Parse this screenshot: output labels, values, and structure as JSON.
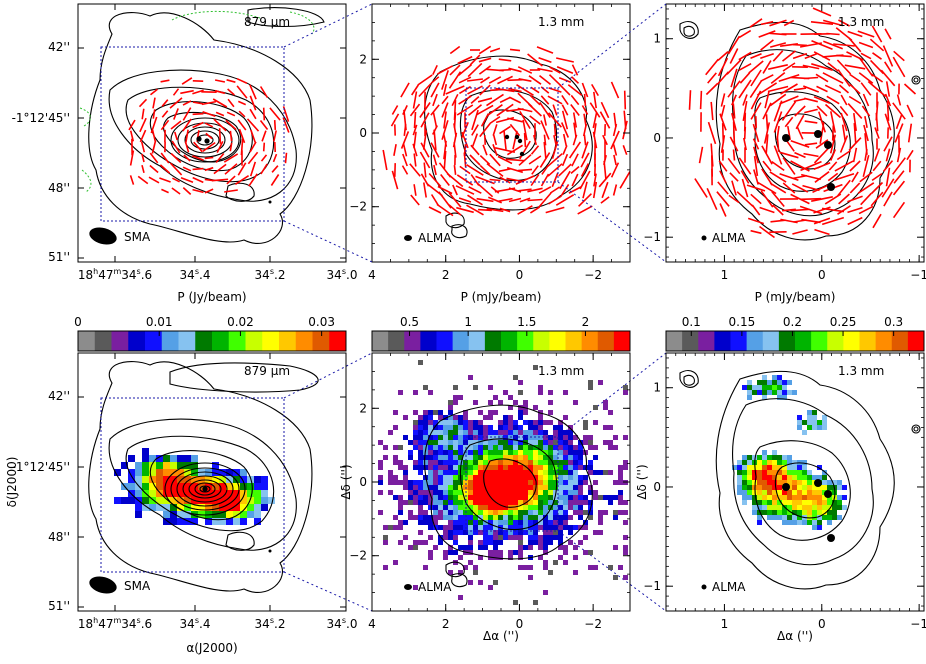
{
  "chart_data": [
    {
      "type": "scatter",
      "panel": "top-left",
      "telescope": "SMA",
      "wavelength_label": "879 μm",
      "xlabel": "P (Jy/beam)",
      "ylabel": "",
      "xticks": [
        {
          "pre": "18",
          "h": "h",
          "mid": "47",
          "m": "m",
          "sec": "34",
          "s": "s",
          "frac": ".6"
        },
        {
          "pre": "",
          "h": "",
          "mid": "",
          "m": "",
          "sec": "34",
          "s": "s",
          "frac": ".4"
        },
        {
          "pre": "",
          "h": "",
          "mid": "",
          "m": "",
          "sec": "34",
          "s": "s",
          "frac": ".2"
        },
        {
          "pre": "",
          "h": "",
          "mid": "",
          "m": "",
          "sec": "34",
          "s": "s",
          "frac": ".0"
        }
      ],
      "yticks": [
        "42''",
        "-1°12'45''",
        "48''",
        "51''"
      ],
      "content": "Stokes I contours with red polarization segments"
    },
    {
      "type": "scatter",
      "panel": "top-middle",
      "telescope": "ALMA",
      "wavelength_label": "1.3 mm",
      "xlabel": "P (mJy/beam)",
      "xlim": [
        4,
        -3
      ],
      "ylim": [
        -3.5,
        3.5
      ],
      "xticks": [
        "4",
        "2",
        "0",
        "−2"
      ],
      "yticks": [
        "2",
        "0",
        "−2"
      ]
    },
    {
      "type": "scatter",
      "panel": "top-right",
      "telescope": "ALMA",
      "wavelength_label": "1.3 mm",
      "xlabel": "P (mJy/beam)",
      "xlim": [
        1.6,
        -1.05
      ],
      "ylim": [
        -1.25,
        1.35
      ],
      "xticks": [
        "1",
        "0",
        "−1"
      ],
      "yticks": [
        "1",
        "0",
        "−1"
      ]
    },
    {
      "type": "heatmap",
      "panel": "bottom-left",
      "telescope": "SMA",
      "wavelength_label": "879 μm",
      "xlabel": "α(J2000)",
      "ylabel": "δ(J2000)",
      "colorbar_ticks": [
        "0",
        "0.01",
        "0.02",
        "0.03"
      ],
      "colorbar_range": [
        0,
        0.033
      ],
      "xticks": [
        {
          "pre": "18",
          "h": "h",
          "mid": "47",
          "m": "m",
          "sec": "34",
          "s": "s",
          "frac": ".6"
        },
        {
          "pre": "",
          "h": "",
          "mid": "",
          "m": "",
          "sec": "34",
          "s": "s",
          "frac": ".4"
        },
        {
          "pre": "",
          "h": "",
          "mid": "",
          "m": "",
          "sec": "34",
          "s": "s",
          "frac": ".2"
        },
        {
          "pre": "",
          "h": "",
          "mid": "",
          "m": "",
          "sec": "34",
          "s": "s",
          "frac": ".0"
        }
      ],
      "yticks": [
        "42''",
        "-1°12'45''",
        "48''",
        "51''"
      ]
    },
    {
      "type": "heatmap",
      "panel": "bottom-middle",
      "telescope": "ALMA",
      "wavelength_label": "1.3 mm",
      "xlabel": "Δα ('')",
      "ylabel": "Δδ ('')",
      "xlim": [
        4,
        -3
      ],
      "ylim": [
        -3.5,
        3.5
      ],
      "colorbar_ticks": [
        "0.5",
        "1",
        "1.5",
        "2"
      ],
      "colorbar_tick_values": [
        0.5,
        1,
        1.5,
        2
      ],
      "colorbar_range": [
        0.18,
        2.38
      ],
      "xticks": [
        "4",
        "2",
        "0",
        "−2"
      ],
      "yticks": [
        "2",
        "0",
        "−2"
      ]
    },
    {
      "type": "heatmap",
      "panel": "bottom-right",
      "telescope": "ALMA",
      "wavelength_label": "1.3 mm",
      "xlabel": "Δα ('')",
      "ylabel": "Δδ ('')",
      "xlim": [
        1.6,
        -1.05
      ],
      "ylim": [
        -1.25,
        1.35
      ],
      "colorbar_ticks": [
        "0.1",
        "0.15",
        "0.2",
        "0.25",
        "0.3"
      ],
      "colorbar_tick_values": [
        0.1,
        0.15,
        0.2,
        0.25,
        0.3
      ],
      "colorbar_range": [
        0.075,
        0.33
      ],
      "xticks": [
        "1",
        "0",
        "−1"
      ],
      "yticks": [
        "1",
        "0",
        "−1"
      ]
    }
  ],
  "colormap": [
    "#8c8c8c",
    "#5a5a5a",
    "#7a1fa0",
    "#0000cc",
    "#1010ff",
    "#55a0e6",
    "#86c2f0",
    "#007a00",
    "#00b400",
    "#40ff00",
    "#c8ff00",
    "#ffff00",
    "#ffc800",
    "#ff8c00",
    "#e05a00",
    "#ff0000"
  ],
  "colors": {
    "vectors": "#ff0000",
    "zoom_box": "#1a1aa8",
    "contour": "#000000"
  }
}
